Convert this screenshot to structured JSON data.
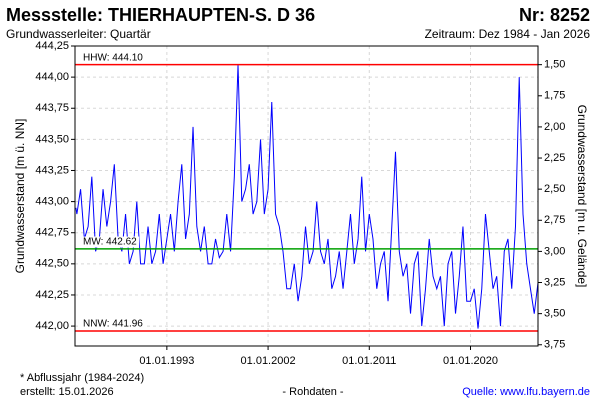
{
  "chart_data": {
    "type": "line",
    "title": "Messstelle: THIERHAUPTEN-S.  D 36",
    "number": "Nr: 8252",
    "subtitle": "Grundwasserleiter: Quartär",
    "period": "Zeitraum: Dez 1984 - Jan 2026",
    "ylabel": "Grundwasserstand [m ü. NN]",
    "y2label": "Grundwasserstand [m u. Gelände]",
    "footnote": "* Abflussjahr (1984-2024)",
    "created": "erstellt:  15.01.2026",
    "data_note": "- Rohdaten -",
    "source": "Quelle: www.lfu.bayern.de",
    "grid": true,
    "xlim": [
      "1984-11-01",
      "2026-01-01"
    ],
    "xticks": [
      {
        "value": "1993-01-01",
        "label": "01.01.1993"
      },
      {
        "value": "2002-01-01",
        "label": "01.01.2002"
      },
      {
        "value": "2011-01-01",
        "label": "01.01.2011"
      },
      {
        "value": "2020-01-01",
        "label": "01.01.2020"
      }
    ],
    "ylim": [
      441.84,
      444.25
    ],
    "yticks": [
      {
        "value": 442.0,
        "label": "442,00"
      },
      {
        "value": 442.25,
        "label": "442,25"
      },
      {
        "value": 442.5,
        "label": "442,50"
      },
      {
        "value": 442.75,
        "label": "442,75"
      },
      {
        "value": 443.0,
        "label": "443,00"
      },
      {
        "value": 443.25,
        "label": "443,25"
      },
      {
        "value": 443.5,
        "label": "443,50"
      },
      {
        "value": 443.75,
        "label": "443,75"
      },
      {
        "value": 444.0,
        "label": "444,00"
      },
      {
        "value": 444.25,
        "label": "444,25"
      }
    ],
    "y2lim": [
      3.76,
      1.35
    ],
    "y2ticks": [
      {
        "value": 1.5,
        "label": "1,50"
      },
      {
        "value": 1.75,
        "label": "1,75"
      },
      {
        "value": 2.0,
        "label": "2,00"
      },
      {
        "value": 2.25,
        "label": "2,25"
      },
      {
        "value": 2.5,
        "label": "2,50"
      },
      {
        "value": 2.75,
        "label": "2,75"
      },
      {
        "value": 3.0,
        "label": "3,00"
      },
      {
        "value": 3.25,
        "label": "3,25"
      },
      {
        "value": 3.5,
        "label": "3,50"
      },
      {
        "value": 3.75,
        "label": "3,75"
      }
    ],
    "reference_lines": [
      {
        "label": "HHW: 444.10",
        "value": 444.1,
        "color": "#ff0000"
      },
      {
        "label": "MW: 442.62",
        "value": 442.62,
        "color": "#00a000"
      },
      {
        "label": "NNW: 441.96",
        "value": 441.96,
        "color": "#ff0000"
      }
    ],
    "x": [
      "1984-12",
      "1985-01",
      "1985-05",
      "1985-09",
      "1986-01",
      "1986-05",
      "1986-09",
      "1987-01",
      "1987-05",
      "1987-09",
      "1988-01",
      "1988-05",
      "1988-09",
      "1989-01",
      "1989-05",
      "1989-09",
      "1990-01",
      "1990-05",
      "1990-09",
      "1991-01",
      "1991-05",
      "1991-09",
      "1992-01",
      "1992-05",
      "1992-09",
      "1993-01",
      "1993-05",
      "1993-09",
      "1994-01",
      "1994-05",
      "1994-09",
      "1995-01",
      "1995-05",
      "1995-09",
      "1996-01",
      "1996-05",
      "1996-09",
      "1997-01",
      "1997-05",
      "1997-09",
      "1998-01",
      "1998-05",
      "1998-09",
      "1999-01",
      "1999-05",
      "1999-09",
      "2000-01",
      "2000-05",
      "2000-09",
      "2001-01",
      "2001-05",
      "2001-09",
      "2002-01",
      "2002-05",
      "2002-09",
      "2003-01",
      "2003-05",
      "2003-09",
      "2004-01",
      "2004-05",
      "2004-09",
      "2005-01",
      "2005-05",
      "2005-09",
      "2006-01",
      "2006-05",
      "2006-09",
      "2007-01",
      "2007-05",
      "2007-09",
      "2008-01",
      "2008-05",
      "2008-09",
      "2009-01",
      "2009-05",
      "2009-09",
      "2010-01",
      "2010-05",
      "2010-09",
      "2011-01",
      "2011-05",
      "2011-09",
      "2012-01",
      "2012-05",
      "2012-09",
      "2013-01",
      "2013-05",
      "2013-09",
      "2014-01",
      "2014-05",
      "2014-09",
      "2015-01",
      "2015-05",
      "2015-09",
      "2016-01",
      "2016-05",
      "2016-09",
      "2017-01",
      "2017-05",
      "2017-09",
      "2018-01",
      "2018-05",
      "2018-09",
      "2019-01",
      "2019-05",
      "2019-09",
      "2020-01",
      "2020-05",
      "2020-09",
      "2021-01",
      "2021-05",
      "2021-09",
      "2022-01",
      "2022-05",
      "2022-09",
      "2023-01",
      "2023-05",
      "2023-09",
      "2024-01",
      "2024-05",
      "2024-09",
      "2025-01",
      "2025-05",
      "2025-09",
      "2026-01"
    ],
    "series": [
      {
        "name": "Grundwasserstand",
        "color": "#0000ff",
        "values": [
          442.95,
          442.9,
          443.1,
          442.7,
          442.8,
          443.2,
          442.6,
          442.7,
          443.1,
          442.8,
          443.0,
          443.3,
          442.7,
          442.6,
          442.9,
          442.5,
          442.6,
          443.0,
          442.5,
          442.5,
          442.8,
          442.5,
          442.6,
          442.9,
          442.5,
          442.7,
          442.9,
          442.6,
          443.0,
          443.3,
          442.7,
          442.9,
          443.6,
          442.8,
          442.6,
          442.8,
          442.5,
          442.5,
          442.7,
          442.55,
          442.6,
          442.9,
          442.6,
          443.2,
          444.1,
          443.0,
          443.1,
          443.3,
          442.9,
          443.0,
          443.5,
          442.9,
          443.1,
          443.8,
          442.9,
          442.8,
          442.6,
          442.3,
          442.3,
          442.5,
          442.2,
          442.4,
          442.8,
          442.5,
          442.6,
          443.0,
          442.6,
          442.5,
          442.7,
          442.3,
          442.4,
          442.6,
          442.3,
          442.6,
          442.9,
          442.5,
          442.7,
          443.2,
          442.6,
          442.9,
          442.7,
          442.3,
          442.5,
          442.6,
          442.2,
          442.8,
          443.4,
          442.6,
          442.4,
          442.5,
          442.1,
          442.5,
          442.6,
          442.0,
          442.3,
          442.7,
          442.4,
          442.3,
          442.4,
          442.0,
          442.5,
          442.6,
          442.1,
          442.4,
          442.8,
          442.2,
          442.2,
          442.3,
          441.98,
          442.3,
          442.9,
          442.6,
          442.3,
          442.4,
          442.0,
          442.6,
          442.7,
          442.3,
          442.8,
          444.0,
          442.9,
          442.5,
          442.3,
          442.1,
          442.35
        ]
      }
    ]
  }
}
